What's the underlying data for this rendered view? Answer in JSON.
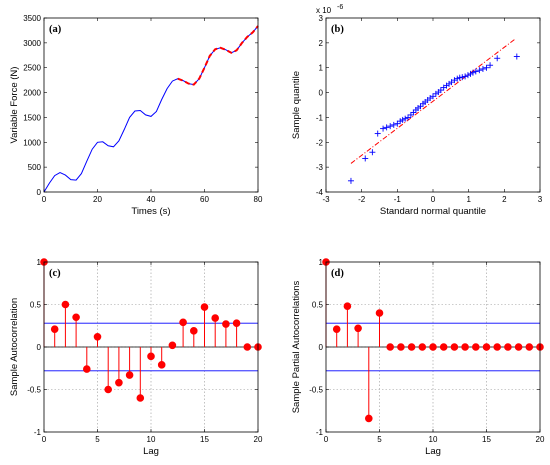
{
  "chart_data": [
    {
      "id": "a",
      "type": "line",
      "panel_label": "(a)",
      "xlabel": "Times (s)",
      "ylabel": "Variable Force (N)",
      "xlim": [
        0,
        80
      ],
      "ylim": [
        0,
        3500
      ],
      "xticks": [
        0,
        20,
        40,
        60,
        80
      ],
      "yticks": [
        0,
        500,
        1000,
        1500,
        2000,
        2500,
        3000,
        3500
      ],
      "grid": false,
      "series": [
        {
          "color": "#0000ff",
          "style": "solid",
          "x": [
            0,
            2,
            4,
            6,
            8,
            10,
            12,
            14,
            16,
            18,
            20,
            22,
            24,
            26,
            28,
            30,
            32,
            34,
            36,
            38,
            40,
            42,
            44,
            46,
            48,
            50,
            52,
            54,
            56,
            58,
            60,
            62,
            64,
            66,
            68,
            70,
            72,
            74,
            76,
            78,
            80
          ],
          "y": [
            0,
            180,
            330,
            390,
            340,
            250,
            240,
            370,
            620,
            860,
            1000,
            1010,
            930,
            910,
            1030,
            1260,
            1500,
            1630,
            1640,
            1550,
            1520,
            1620,
            1860,
            2080,
            2230,
            2280,
            2240,
            2180,
            2160,
            2280,
            2500,
            2740,
            2870,
            2900,
            2860,
            2800,
            2850,
            3000,
            3120,
            3210,
            3340
          ]
        },
        {
          "color": "#ff0000",
          "style": "dashed",
          "x": [
            50,
            52,
            54,
            56,
            58,
            60,
            62,
            64,
            66,
            68,
            70,
            72,
            74,
            76,
            78,
            80
          ],
          "y": [
            2280,
            2240,
            2180,
            2160,
            2280,
            2500,
            2740,
            2870,
            2900,
            2860,
            2800,
            2850,
            3000,
            3120,
            3210,
            3340
          ]
        }
      ]
    },
    {
      "id": "b",
      "type": "scatter",
      "panel_label": "(b)",
      "xlabel": "Standard normal quantile",
      "ylabel": "Sample quantile",
      "exponent_label": "x 10",
      "exponent_power": "-6",
      "xlim": [
        -3,
        3
      ],
      "ylim": [
        -4,
        3
      ],
      "xticks": [
        -3,
        -2,
        -1,
        0,
        1,
        2,
        3
      ],
      "yticks": [
        -4,
        -3,
        -2,
        -1,
        0,
        1,
        2,
        3
      ],
      "grid": false,
      "marker": "+",
      "marker_color": "#0000ff",
      "reference_line": {
        "color": "#ff0000",
        "style": "dashdot",
        "x": [
          -2.3,
          2.3
        ],
        "y": [
          -2.85,
          2.15
        ]
      },
      "points": [
        [
          -2.3,
          -3.55
        ],
        [
          -1.9,
          -2.65
        ],
        [
          -1.7,
          -2.4
        ],
        [
          -1.55,
          -1.65
        ],
        [
          -1.4,
          -1.45
        ],
        [
          -1.3,
          -1.4
        ],
        [
          -1.2,
          -1.35
        ],
        [
          -1.1,
          -1.3
        ],
        [
          -1.0,
          -1.25
        ],
        [
          -0.92,
          -1.15
        ],
        [
          -0.85,
          -1.1
        ],
        [
          -0.78,
          -1.05
        ],
        [
          -0.7,
          -1.0
        ],
        [
          -0.62,
          -0.9
        ],
        [
          -0.55,
          -0.8
        ],
        [
          -0.48,
          -0.7
        ],
        [
          -0.42,
          -0.62
        ],
        [
          -0.35,
          -0.55
        ],
        [
          -0.28,
          -0.45
        ],
        [
          -0.22,
          -0.38
        ],
        [
          -0.15,
          -0.3
        ],
        [
          -0.08,
          -0.22
        ],
        [
          0.0,
          -0.15
        ],
        [
          0.08,
          -0.05
        ],
        [
          0.15,
          0.02
        ],
        [
          0.22,
          0.1
        ],
        [
          0.3,
          0.2
        ],
        [
          0.38,
          0.28
        ],
        [
          0.45,
          0.35
        ],
        [
          0.52,
          0.42
        ],
        [
          0.6,
          0.5
        ],
        [
          0.68,
          0.56
        ],
        [
          0.75,
          0.6
        ],
        [
          0.82,
          0.62
        ],
        [
          0.9,
          0.65
        ],
        [
          0.98,
          0.7
        ],
        [
          1.05,
          0.75
        ],
        [
          1.12,
          0.8
        ],
        [
          1.2,
          0.85
        ],
        [
          1.3,
          0.9
        ],
        [
          1.4,
          0.95
        ],
        [
          1.5,
          1.0
        ],
        [
          1.6,
          1.1
        ],
        [
          1.8,
          1.38
        ],
        [
          2.35,
          1.45
        ]
      ]
    },
    {
      "id": "c",
      "type": "stem",
      "panel_label": "(c)",
      "xlabel": "Lag",
      "ylabel": "Sample Autocorrelation",
      "xlim": [
        0,
        20
      ],
      "ylim": [
        -1,
        1
      ],
      "xticks": [
        0,
        5,
        10,
        15,
        20
      ],
      "yticks": [
        -1,
        -0.5,
        0,
        0.5,
        1
      ],
      "grid": true,
      "stem_color": "#ff0000",
      "bounds": [
        0.28,
        -0.28
      ],
      "bounds_color": "#0000ff",
      "x": [
        0,
        1,
        2,
        3,
        4,
        5,
        6,
        7,
        8,
        9,
        10,
        11,
        12,
        13,
        14,
        15,
        16,
        17,
        18,
        19,
        20
      ],
      "values": [
        1.0,
        0.21,
        0.5,
        0.35,
        -0.26,
        0.12,
        -0.5,
        -0.42,
        -0.33,
        -0.6,
        -0.11,
        -0.21,
        0.02,
        0.29,
        0.19,
        0.47,
        0.34,
        0.27,
        0.28,
        0.0,
        0.0
      ]
    },
    {
      "id": "d",
      "type": "stem",
      "panel_label": "(d)",
      "xlabel": "Lag",
      "ylabel": "Sample Partial Autocorrelations",
      "xlim": [
        0,
        20
      ],
      "ylim": [
        -1,
        1
      ],
      "xticks": [
        0,
        5,
        10,
        15,
        20
      ],
      "yticks": [
        -1,
        -0.5,
        0,
        0.5,
        1
      ],
      "grid": true,
      "stem_color": "#ff0000",
      "bounds": [
        0.28,
        -0.28
      ],
      "bounds_color": "#0000ff",
      "x": [
        0,
        1,
        2,
        3,
        4,
        5,
        6,
        7,
        8,
        9,
        10,
        11,
        12,
        13,
        14,
        15,
        16,
        17,
        18,
        19,
        20
      ],
      "values": [
        1.0,
        0.21,
        0.48,
        0.22,
        -0.84,
        0.4,
        0.0,
        0.0,
        0.0,
        0.0,
        0.0,
        0.0,
        0.0,
        0.0,
        0.0,
        0.0,
        0.0,
        0.0,
        0.0,
        0.0,
        0.0
      ]
    }
  ]
}
